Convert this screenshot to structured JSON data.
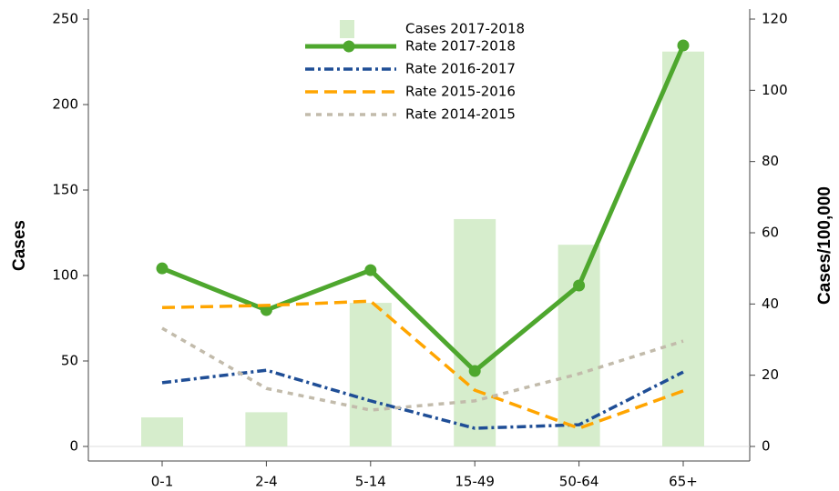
{
  "chart_data": {
    "type": "bar-line",
    "categories": [
      "0-1",
      "2-4",
      "5-14",
      "15-49",
      "50-64",
      "65+"
    ],
    "ylabel": "Cases",
    "y2label": "Cases/100,000",
    "ylim": [
      0,
      250
    ],
    "yticks": [
      0,
      50,
      100,
      150,
      200,
      250
    ],
    "y2lim": [
      0,
      120
    ],
    "y2ticks": [
      0,
      20,
      40,
      60,
      80,
      100,
      120
    ],
    "legend": "top-center",
    "series": [
      {
        "name": "Cases 2017-2018",
        "type": "bar",
        "axis": "y",
        "color": "#d6edcc",
        "values": [
          17,
          20,
          84,
          133,
          118,
          231
        ]
      },
      {
        "name": "Rate 2017-2018",
        "type": "line",
        "axis": "y2",
        "color": "#4ea72e",
        "style": "solid",
        "markers": true,
        "values": [
          50,
          38.3,
          49.5,
          21.2,
          45.2,
          112.6
        ]
      },
      {
        "name": "Rate 2016-2017",
        "type": "line",
        "axis": "y2",
        "color": "#1f4e96",
        "style": "dashdot",
        "markers": false,
        "values": [
          17.9,
          21.4,
          12.8,
          5.1,
          6.1,
          20.9
        ]
      },
      {
        "name": "Rate 2015-2016",
        "type": "line",
        "axis": "y2",
        "color": "#ffa500",
        "style": "dashed",
        "markers": false,
        "values": [
          39,
          39.6,
          40.8,
          15.8,
          5.1,
          15.6
        ]
      },
      {
        "name": "Rate 2014-2015",
        "type": "line",
        "axis": "y2",
        "color": "#c2bbab",
        "style": "dotted",
        "markers": false,
        "values": [
          33.2,
          16.3,
          10.2,
          12.8,
          20.4,
          29.6
        ]
      }
    ]
  }
}
